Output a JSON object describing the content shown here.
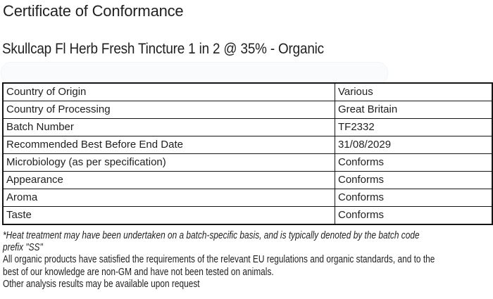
{
  "document": {
    "title": "Certificate of Conformance",
    "product_name": "Skullcap Fl Herb Fresh Tincture 1 in 2 @ 35% - Organic"
  },
  "table": {
    "rows": [
      {
        "label": "Country of Origin",
        "value": "Various"
      },
      {
        "label": "Country of Processing",
        "value": "Great Britain"
      },
      {
        "label": "Batch Number",
        "value": "TF2332"
      },
      {
        "label": "Recommended Best Before End Date",
        "value": "31/08/2029"
      },
      {
        "label": "Microbiology (as per specification)",
        "value": "Conforms"
      },
      {
        "label": "Appearance",
        "value": "Conforms"
      },
      {
        "label": "Aroma",
        "value": "Conforms"
      },
      {
        "label": "Taste",
        "value": "Conforms"
      }
    ]
  },
  "footer": {
    "heat_note_lines": [
      "*Heat treatment may have been undertaken on a batch-specific basis, and is typically denoted by the batch code",
      "prefix \"SS\""
    ],
    "organic_statement_lines": [
      "All organic products have satisfied the requirements of the relevant EU regulations and organic standards, and to the",
      "best of our knowledge are non-GM and have not been tested on animals."
    ],
    "other_results_line": "Other analysis results may be available upon request"
  }
}
